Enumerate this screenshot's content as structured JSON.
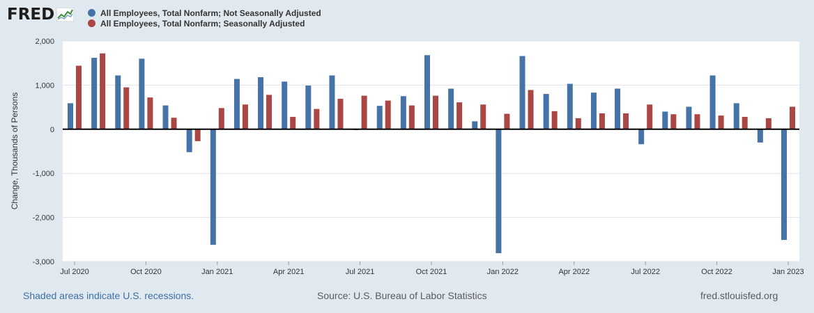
{
  "header": {
    "logo_text": "FRED",
    "logo_icon": "chart-line-icon"
  },
  "footer": {
    "recession_note": "Shaded areas indicate U.S. recessions.",
    "source": "Source: U.S. Bureau of Labor Statistics",
    "site": "fred.stlouisfed.org"
  },
  "chart_data": {
    "type": "bar",
    "ylabel": "Change, Thousands of Persons",
    "ylim": [
      -3000,
      2000
    ],
    "yticks": [
      2000,
      1000,
      0,
      -1000,
      -2000,
      -3000
    ],
    "ytick_labels": [
      "2,000",
      "1,000",
      "0",
      "-1,000",
      "-2,000",
      "-3,000"
    ],
    "grid": true,
    "legend_position": "top-left",
    "categories": [
      "2020-07",
      "2020-08",
      "2020-09",
      "2020-10",
      "2020-11",
      "2020-12",
      "2021-01",
      "2021-02",
      "2021-03",
      "2021-04",
      "2021-05",
      "2021-06",
      "2021-07",
      "2021-08",
      "2021-09",
      "2021-10",
      "2021-11",
      "2021-12",
      "2022-01",
      "2022-02",
      "2022-03",
      "2022-04",
      "2022-05",
      "2022-06",
      "2022-07",
      "2022-08",
      "2022-09",
      "2022-10",
      "2022-11",
      "2022-12",
      "2023-01"
    ],
    "xtick_labels": [
      {
        "index": 0,
        "label": "Jul 2020"
      },
      {
        "index": 3,
        "label": "Oct 2020"
      },
      {
        "index": 6,
        "label": "Jan 2021"
      },
      {
        "index": 9,
        "label": "Apr 2021"
      },
      {
        "index": 12,
        "label": "Jul 2021"
      },
      {
        "index": 15,
        "label": "Oct 2021"
      },
      {
        "index": 18,
        "label": "Jan 2022"
      },
      {
        "index": 21,
        "label": "Apr 2022"
      },
      {
        "index": 24,
        "label": "Jul 2022"
      },
      {
        "index": 27,
        "label": "Oct 2022"
      },
      {
        "index": 30,
        "label": "Jan 2023"
      }
    ],
    "series": [
      {
        "name": "All Employees, Total Nonfarm; Not Seasonally Adjusted",
        "color": "#4572a7",
        "values": [
          590,
          1620,
          1220,
          1600,
          540,
          -520,
          -2620,
          1140,
          1180,
          1080,
          990,
          1220,
          -20,
          530,
          750,
          1680,
          920,
          180,
          -2810,
          1660,
          800,
          1030,
          830,
          920,
          -340,
          400,
          510,
          1220,
          590,
          -300,
          -2510
        ]
      },
      {
        "name": "All Employees, Total Nonfarm; Seasonally Adjusted",
        "color": "#aa4643",
        "values": [
          1440,
          1720,
          950,
          720,
          260,
          -270,
          480,
          560,
          780,
          280,
          460,
          690,
          760,
          650,
          540,
          760,
          610,
          560,
          350,
          890,
          410,
          250,
          360,
          360,
          560,
          340,
          340,
          310,
          280,
          250,
          510
        ]
      }
    ]
  }
}
